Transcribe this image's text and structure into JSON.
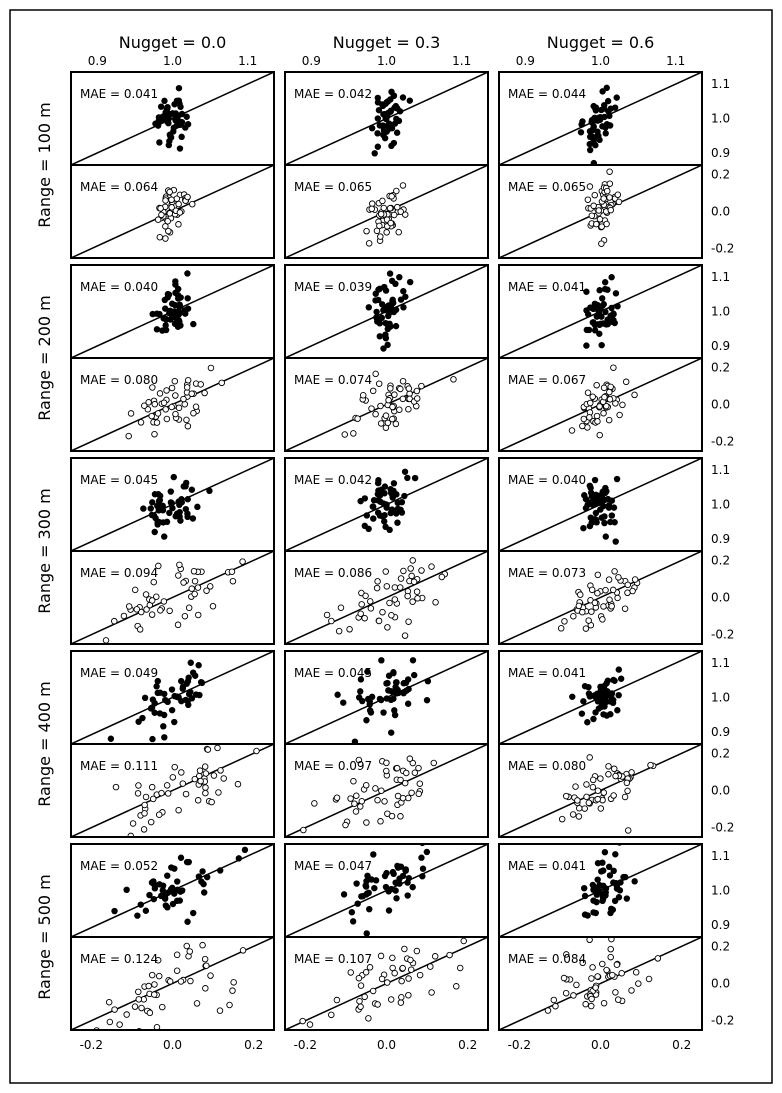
{
  "chart_data": {
    "type": "scatter",
    "column_titles": [
      "Nugget = 0.0",
      "Nugget = 0.3",
      "Nugget = 0.6"
    ],
    "row_labels": [
      "Range = 100 m",
      "Range = 200 m",
      "Range = 300 m",
      "Range = 400 m",
      "Range = 500 m"
    ],
    "ratio_axis": {
      "xlim": [
        0.865,
        1.135
      ],
      "ylim": [
        0.865,
        1.135
      ],
      "xticks": [
        "0.9",
        "1.0",
        "1.1"
      ],
      "yticks": [
        "0.9",
        "1.0",
        "1.1"
      ]
    },
    "diff_axis": {
      "xlim": [
        -0.25,
        0.25
      ],
      "ylim": [
        -0.25,
        0.25
      ],
      "xticks": [
        "-0.2",
        "0.0",
        "0.2"
      ],
      "yticks": [
        "-0.2",
        "0.0",
        "0.2"
      ]
    },
    "ratio_panels": [
      [
        {
          "mae": "MAE = 0.041",
          "x_spread": 0.01,
          "y_spread": 0.055
        },
        {
          "mae": "MAE = 0.042",
          "x_spread": 0.01,
          "y_spread": 0.055
        },
        {
          "mae": "MAE = 0.044",
          "x_spread": 0.01,
          "y_spread": 0.058
        }
      ],
      [
        {
          "mae": "MAE = 0.040",
          "x_spread": 0.012,
          "y_spread": 0.055
        },
        {
          "mae": "MAE = 0.039",
          "x_spread": 0.012,
          "y_spread": 0.055
        },
        {
          "mae": "MAE = 0.041",
          "x_spread": 0.01,
          "y_spread": 0.056
        }
      ],
      [
        {
          "mae": "MAE = 0.045",
          "x_spread": 0.022,
          "y_spread": 0.06
        },
        {
          "mae": "MAE = 0.042",
          "x_spread": 0.018,
          "y_spread": 0.056
        },
        {
          "mae": "MAE = 0.040",
          "x_spread": 0.012,
          "y_spread": 0.055
        }
      ],
      [
        {
          "mae": "MAE = 0.049",
          "x_spread": 0.03,
          "y_spread": 0.065
        },
        {
          "mae": "MAE = 0.045",
          "x_spread": 0.022,
          "y_spread": 0.058
        },
        {
          "mae": "MAE = 0.041",
          "x_spread": 0.014,
          "y_spread": 0.055
        }
      ],
      [
        {
          "mae": "MAE = 0.052",
          "x_spread": 0.035,
          "y_spread": 0.07
        },
        {
          "mae": "MAE = 0.047",
          "x_spread": 0.025,
          "y_spread": 0.06
        },
        {
          "mae": "MAE = 0.041",
          "x_spread": 0.015,
          "y_spread": 0.058
        }
      ]
    ],
    "diff_panels": [
      [
        {
          "mae": "MAE = 0.064",
          "x_spread": 0.022,
          "y_spread": 0.095
        },
        {
          "mae": "MAE = 0.065",
          "x_spread": 0.022,
          "y_spread": 0.095
        },
        {
          "mae": "MAE = 0.065",
          "x_spread": 0.02,
          "y_spread": 0.095
        }
      ],
      [
        {
          "mae": "MAE = 0.080",
          "x_spread": 0.06,
          "y_spread": 0.1
        },
        {
          "mae": "MAE = 0.074",
          "x_spread": 0.05,
          "y_spread": 0.095
        },
        {
          "mae": "MAE = 0.067",
          "x_spread": 0.035,
          "y_spread": 0.095
        }
      ],
      [
        {
          "mae": "MAE = 0.094",
          "x_spread": 0.075,
          "y_spread": 0.11
        },
        {
          "mae": "MAE = 0.086",
          "x_spread": 0.065,
          "y_spread": 0.105
        },
        {
          "mae": "MAE = 0.073",
          "x_spread": 0.045,
          "y_spread": 0.098
        }
      ],
      [
        {
          "mae": "MAE = 0.111",
          "x_spread": 0.09,
          "y_spread": 0.125
        },
        {
          "mae": "MAE = 0.097",
          "x_spread": 0.075,
          "y_spread": 0.115
        },
        {
          "mae": "MAE = 0.080",
          "x_spread": 0.055,
          "y_spread": 0.105
        }
      ],
      [
        {
          "mae": "MAE = 0.124",
          "x_spread": 0.1,
          "y_spread": 0.135
        },
        {
          "mae": "MAE = 0.107",
          "x_spread": 0.09,
          "y_spread": 0.125
        },
        {
          "mae": "MAE = 0.084",
          "x_spread": 0.06,
          "y_spread": 0.108
        }
      ]
    ],
    "points_per_panel": 50,
    "colors": {
      "filled": "#000000",
      "hollow_fill": "#ffffff",
      "line": "#000000"
    }
  }
}
